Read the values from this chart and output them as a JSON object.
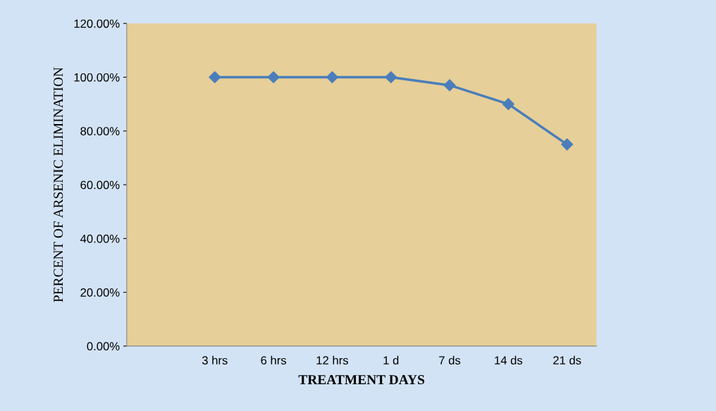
{
  "chart_data": {
    "type": "line",
    "xlabel": "TREATMENT DAYS",
    "ylabel": "PERCENT OF ARSENIC ELIMINATION",
    "categories": [
      null,
      "3 hrs",
      "6 hrs",
      "12 hrs",
      "1 d",
      "7 ds",
      "14 ds",
      "21 ds"
    ],
    "series": [
      {
        "color": "#4a7ebb",
        "values": [
          null,
          100,
          100,
          100,
          100,
          97,
          90,
          75
        ]
      }
    ],
    "ylim": [
      0,
      120
    ],
    "yticks": [
      {
        "value": 0,
        "label": "0.00%"
      },
      {
        "value": 20,
        "label": "20.00%"
      },
      {
        "value": 40,
        "label": "40.00%"
      },
      {
        "value": 60,
        "label": "60.00%"
      },
      {
        "value": 80,
        "label": "80.00%"
      },
      {
        "value": 100,
        "label": "100.00%"
      },
      {
        "value": 120,
        "label": "120.00%"
      }
    ],
    "marker": "diamond",
    "line_style": "solid",
    "grid": false
  }
}
